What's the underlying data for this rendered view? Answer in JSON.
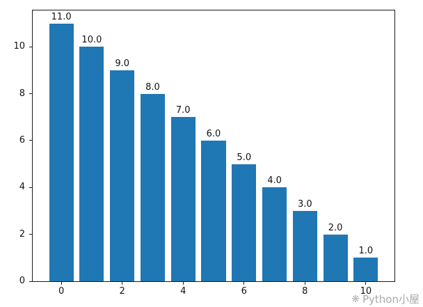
{
  "figure": {
    "background": "#ffffff",
    "watermark": {
      "icon": "❋",
      "text": "Python小屋",
      "color": "#a8a8a8"
    }
  },
  "chart_data": {
    "type": "bar",
    "title": "",
    "xlabel": "",
    "ylabel": "",
    "x": [
      0,
      1,
      2,
      3,
      4,
      5,
      6,
      7,
      8,
      9,
      10
    ],
    "values": [
      11,
      10,
      9,
      8,
      7,
      6,
      5,
      4,
      3,
      2,
      1
    ],
    "bar_labels": [
      "11.0",
      "10.0",
      "9.0",
      "8.0",
      "7.0",
      "6.0",
      "5.0",
      "4.0",
      "3.0",
      "2.0",
      "1.0"
    ],
    "bar_color": "#1f77b4",
    "bar_width": 0.8,
    "xticks": [
      0,
      2,
      4,
      6,
      8,
      10
    ],
    "yticks": [
      0,
      2,
      4,
      6,
      8,
      10
    ],
    "xlim": [
      -0.94,
      10.94
    ],
    "ylim": [
      0,
      11.55
    ],
    "grid": false,
    "legend": null
  }
}
